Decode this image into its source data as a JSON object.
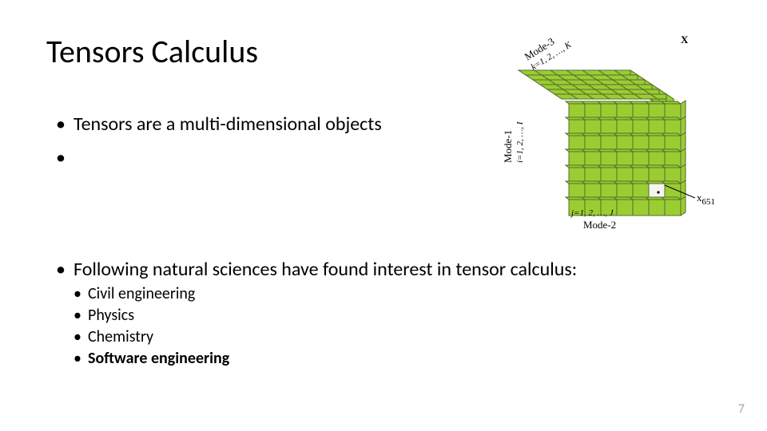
{
  "title": "Tensors Calculus",
  "bullets": {
    "b1": "Tensors are a multi-dimensional objects",
    "b2": "Following natural sciences have found interest in tensor calculus:",
    "sub": {
      "s1": "Civil engineering",
      "s2": "Physics",
      "s3": "Chemistry",
      "s4": "Software engineering"
    }
  },
  "page_number": "7",
  "diagram": {
    "tensor_label": "X",
    "mode1_label": "Mode-1",
    "mode1_index": "i=1, 2, …, I",
    "mode2_label": "Mode-2",
    "mode2_index": "j=1, 2, …, J",
    "mode3_label": "Mode-3",
    "mode3_index": "k=1, 2, …, K",
    "element_label": "x",
    "element_sub": "651",
    "cube": {
      "grid_n": 7,
      "cell": 20,
      "fill": "#9acd32",
      "stroke": "#556b2f",
      "highlight_fill": "#f5f5f0",
      "bg": "#ffffff"
    }
  }
}
